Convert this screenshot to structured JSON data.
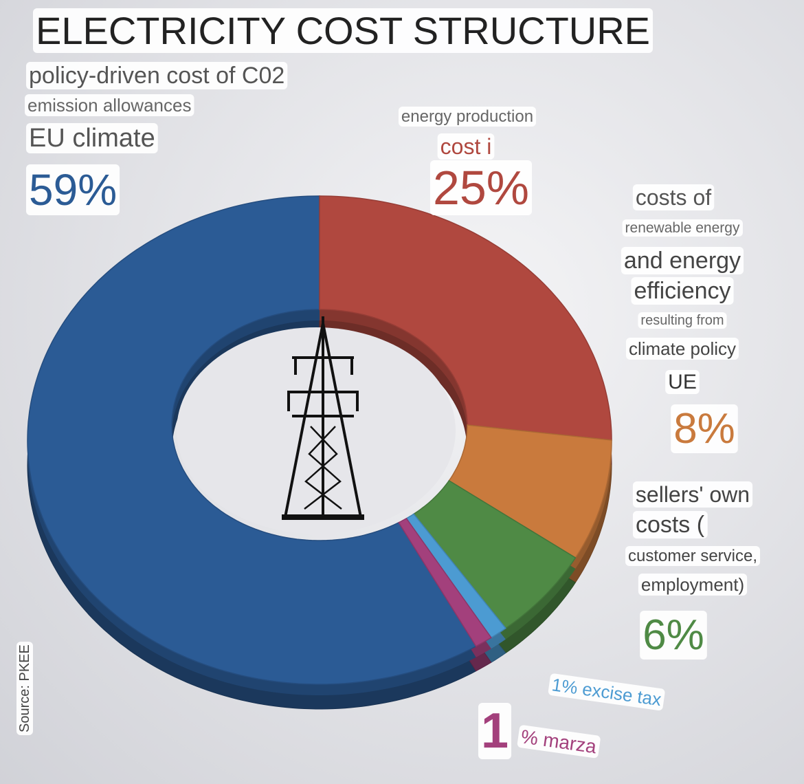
{
  "chart_data": {
    "type": "donut",
    "title": "ELECTRICITY COST STRUCTURE",
    "source": "Source: PKEE",
    "values": [
      59,
      25,
      8,
      6,
      1,
      1
    ],
    "value_labels": [
      "59%",
      "25%",
      "8%",
      "6%",
      "1% excise tax",
      "1"
    ],
    "colors": [
      "#2b5b95",
      "#b0483f",
      "#c97a3d",
      "#4f8a45",
      "#4c9bd2",
      "#a3407c"
    ],
    "labels": [
      [
        "policy-driven cost of C02",
        "emission allowances",
        "EU climate"
      ],
      [
        "energy production",
        "cost i"
      ],
      [
        "costs of",
        "renewable energy",
        "and energy",
        "efficiency",
        "resulting from",
        "climate policy",
        "UE"
      ],
      [
        "sellers' own",
        "costs (",
        "customer service,",
        "employment)"
      ],
      [],
      [
        "% marza"
      ]
    ]
  }
}
